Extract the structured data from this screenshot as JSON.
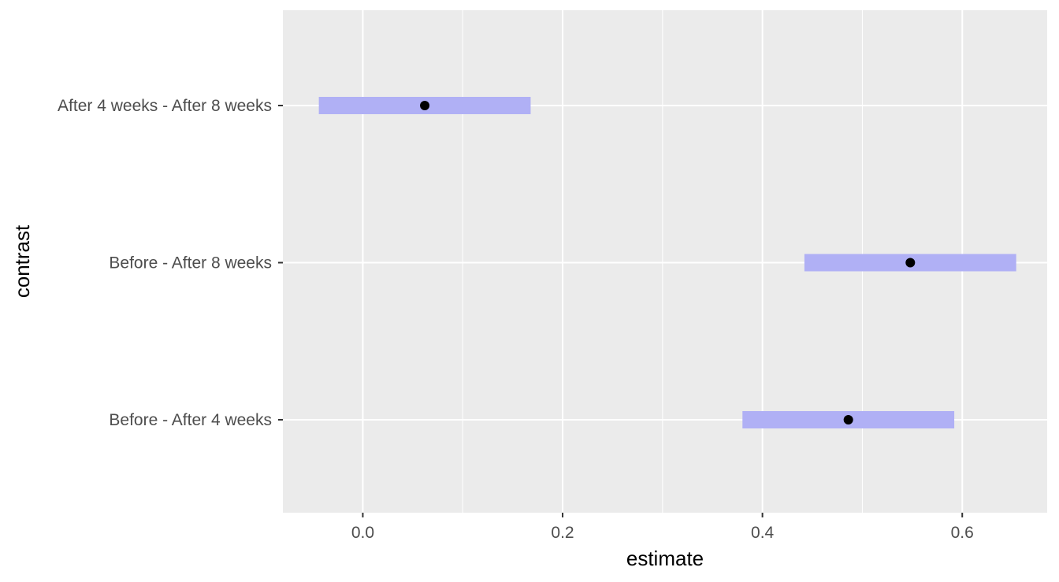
{
  "chart_data": {
    "type": "scatter",
    "orientation": "horizontal",
    "title": "",
    "xlabel": "estimate",
    "ylabel": "contrast",
    "xlim": [
      -0.08,
      0.685
    ],
    "x_ticks": [
      0.0,
      0.2,
      0.4,
      0.6
    ],
    "x_tick_labels": [
      "0.0",
      "0.2",
      "0.4",
      "0.6"
    ],
    "categories": [
      "After 4 weeks - After 8 weeks",
      "Before - After 8 weeks",
      "Before - After 4 weeks"
    ],
    "series": [
      {
        "values": [
          0.062,
          0.548,
          0.486
        ],
        "lower": [
          -0.044,
          0.442,
          0.38
        ],
        "upper": [
          0.168,
          0.654,
          0.592
        ]
      }
    ],
    "grid": true,
    "legend": "none",
    "colors": {
      "panel_background": "#ebebeb",
      "grid_line": "#ffffff",
      "interval_band": "#b0b0f5",
      "point": "#000000"
    }
  }
}
